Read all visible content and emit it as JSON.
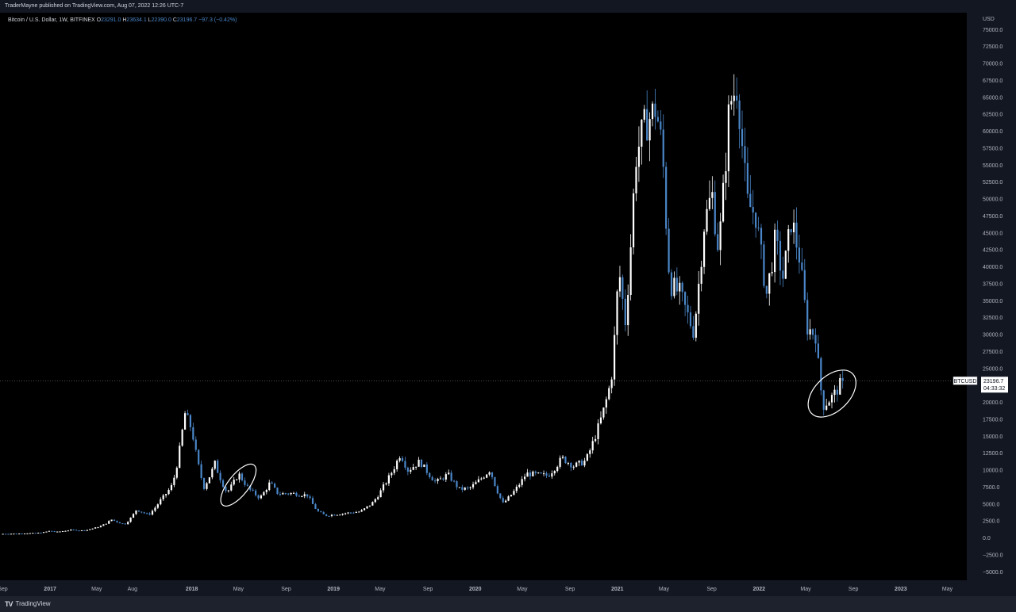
{
  "header": {
    "published": "TraderMayne published on TradingView.com, Aug 07, 2022 12:26 UTC-7"
  },
  "legend": {
    "symbol": "Bitcoin / U.S. Dollar, 1W, BITFINEX",
    "o_label": "O",
    "o_value": "23291.0",
    "h_label": "H",
    "h_value": "23634.1",
    "l_label": "L",
    "l_value": "22390.0",
    "c_label": "C",
    "c_value": "23196.7",
    "change": "−97.3 (−0.42%)"
  },
  "footer": {
    "brand": "TradingView"
  },
  "price_tag": {
    "symbol": "BTCUSD",
    "value": "23196.7",
    "countdown": "04:33:32"
  },
  "colors": {
    "background": "#000000",
    "frame": "#131722",
    "up_candle": "#ffffff",
    "down_candle": "#4a86c8",
    "axis_text": "#b2b5be",
    "legend_value": "#4a86c8",
    "ellipse": "#ffffff"
  },
  "chart_data": {
    "type": "candlestick",
    "x_axis": {
      "type": "date",
      "range": [
        "2016-08-25",
        "2023-06-20"
      ],
      "ticks": [
        {
          "date": "2016-09-01",
          "label": "Sep"
        },
        {
          "date": "2017-01-01",
          "label": "2017"
        },
        {
          "date": "2017-05-01",
          "label": "May"
        },
        {
          "date": "2017-08-01",
          "label": "Aug"
        },
        {
          "date": "2018-01-01",
          "label": "2018"
        },
        {
          "date": "2018-05-01",
          "label": "May"
        },
        {
          "date": "2018-09-01",
          "label": "Sep"
        },
        {
          "date": "2019-01-01",
          "label": "2019"
        },
        {
          "date": "2019-05-01",
          "label": "May"
        },
        {
          "date": "2019-09-01",
          "label": "Sep"
        },
        {
          "date": "2020-01-01",
          "label": "2020"
        },
        {
          "date": "2020-05-01",
          "label": "May"
        },
        {
          "date": "2020-09-01",
          "label": "Sep"
        },
        {
          "date": "2021-01-01",
          "label": "2021"
        },
        {
          "date": "2021-05-01",
          "label": "May"
        },
        {
          "date": "2021-09-01",
          "label": "Sep"
        },
        {
          "date": "2022-01-01",
          "label": "2022"
        },
        {
          "date": "2022-05-01",
          "label": "May"
        },
        {
          "date": "2022-09-01",
          "label": "Sep"
        },
        {
          "date": "2023-01-01",
          "label": "2023"
        },
        {
          "date": "2023-05-01",
          "label": "May"
        }
      ]
    },
    "y_axis": {
      "unit_label": "USD",
      "range": [
        -6250,
        77500
      ],
      "ticks": [
        "75000.0",
        "72500.0",
        "70000.0",
        "67500.0",
        "65000.0",
        "62500.0",
        "60000.0",
        "57500.0",
        "55000.0",
        "52500.0",
        "50000.0",
        "47500.0",
        "45000.0",
        "42500.0",
        "40000.0",
        "37500.0",
        "35000.0",
        "32500.0",
        "30000.0",
        "27500.0",
        "25000.0",
        "22500.0",
        "20000.0",
        "17500.0",
        "15000.0",
        "12500.0",
        "10000.0",
        "7500.0",
        "5000.0",
        "2500.0",
        "0.0",
        "−2500.0",
        "−5000.0"
      ]
    },
    "current_price": 23196.7,
    "anchors": [
      [
        "2016-08-29",
        600
      ],
      [
        "2016-10-15",
        640
      ],
      [
        "2016-12-15",
        780
      ],
      [
        "2017-01-04",
        1050
      ],
      [
        "2017-01-20",
        880
      ],
      [
        "2017-03-01",
        1200
      ],
      [
        "2017-04-01",
        1080
      ],
      [
        "2017-05-15",
        1750
      ],
      [
        "2017-06-12",
        2700
      ],
      [
        "2017-07-15",
        2000
      ],
      [
        "2017-08-15",
        4200
      ],
      [
        "2017-09-15",
        3400
      ],
      [
        "2017-10-15",
        5500
      ],
      [
        "2017-11-15",
        7800
      ],
      [
        "2017-12-17",
        18500
      ],
      [
        "2018-01-05",
        16000
      ],
      [
        "2018-02-05",
        7500
      ],
      [
        "2018-03-05",
        11000
      ],
      [
        "2018-04-05",
        6700
      ],
      [
        "2018-05-05",
        9500
      ],
      [
        "2018-06-01",
        7200
      ],
      [
        "2018-06-29",
        5900
      ],
      [
        "2018-07-25",
        8200
      ],
      [
        "2018-08-15",
        6500
      ],
      [
        "2018-09-15",
        6600
      ],
      [
        "2018-10-30",
        6300
      ],
      [
        "2018-11-25",
        3900
      ],
      [
        "2018-12-15",
        3300
      ],
      [
        "2019-01-20",
        3550
      ],
      [
        "2019-03-15",
        3900
      ],
      [
        "2019-04-15",
        5200
      ],
      [
        "2019-05-15",
        7800
      ],
      [
        "2019-06-26",
        12500
      ],
      [
        "2019-07-15",
        10000
      ],
      [
        "2019-08-15",
        11300
      ],
      [
        "2019-09-25",
        8200
      ],
      [
        "2019-10-26",
        9400
      ],
      [
        "2019-11-25",
        7200
      ],
      [
        "2019-12-20",
        7300
      ],
      [
        "2020-02-12",
        10100
      ],
      [
        "2020-03-16",
        5100
      ],
      [
        "2020-04-15",
        7000
      ],
      [
        "2020-05-15",
        9500
      ],
      [
        "2020-06-15",
        9300
      ],
      [
        "2020-07-10",
        9200
      ],
      [
        "2020-08-15",
        11800
      ],
      [
        "2020-09-15",
        10600
      ],
      [
        "2020-10-15",
        11400
      ],
      [
        "2020-11-10",
        15300
      ],
      [
        "2020-12-01",
        19000
      ],
      [
        "2020-12-20",
        23500
      ],
      [
        "2021-01-08",
        40000
      ],
      [
        "2021-01-25",
        32000
      ],
      [
        "2021-02-20",
        56000
      ],
      [
        "2021-03-13",
        60500
      ],
      [
        "2021-04-14",
        63500
      ],
      [
        "2021-05-01",
        57000
      ],
      [
        "2021-05-20",
        37500
      ],
      [
        "2021-06-15",
        36000
      ],
      [
        "2021-07-20",
        30500
      ],
      [
        "2021-08-15",
        46000
      ],
      [
        "2021-09-05",
        51000
      ],
      [
        "2021-09-22",
        42500
      ],
      [
        "2021-10-20",
        64000
      ],
      [
        "2021-11-10",
        67000
      ],
      [
        "2021-12-05",
        49500
      ],
      [
        "2021-12-28",
        47500
      ],
      [
        "2022-01-24",
        36000
      ],
      [
        "2022-02-15",
        44000
      ],
      [
        "2022-03-07",
        38500
      ],
      [
        "2022-03-29",
        47200
      ],
      [
        "2022-04-20",
        41000
      ],
      [
        "2022-05-09",
        31000
      ],
      [
        "2022-05-30",
        30000
      ],
      [
        "2022-06-18",
        19500
      ],
      [
        "2022-07-15",
        21000
      ],
      [
        "2022-08-07",
        23196.7
      ]
    ],
    "annotations": [
      {
        "type": "ellipse",
        "center_date": "2018-05-01",
        "center_price": 7800
      },
      {
        "type": "ellipse",
        "center_date": "2022-07-08",
        "center_price": 21300
      }
    ]
  }
}
